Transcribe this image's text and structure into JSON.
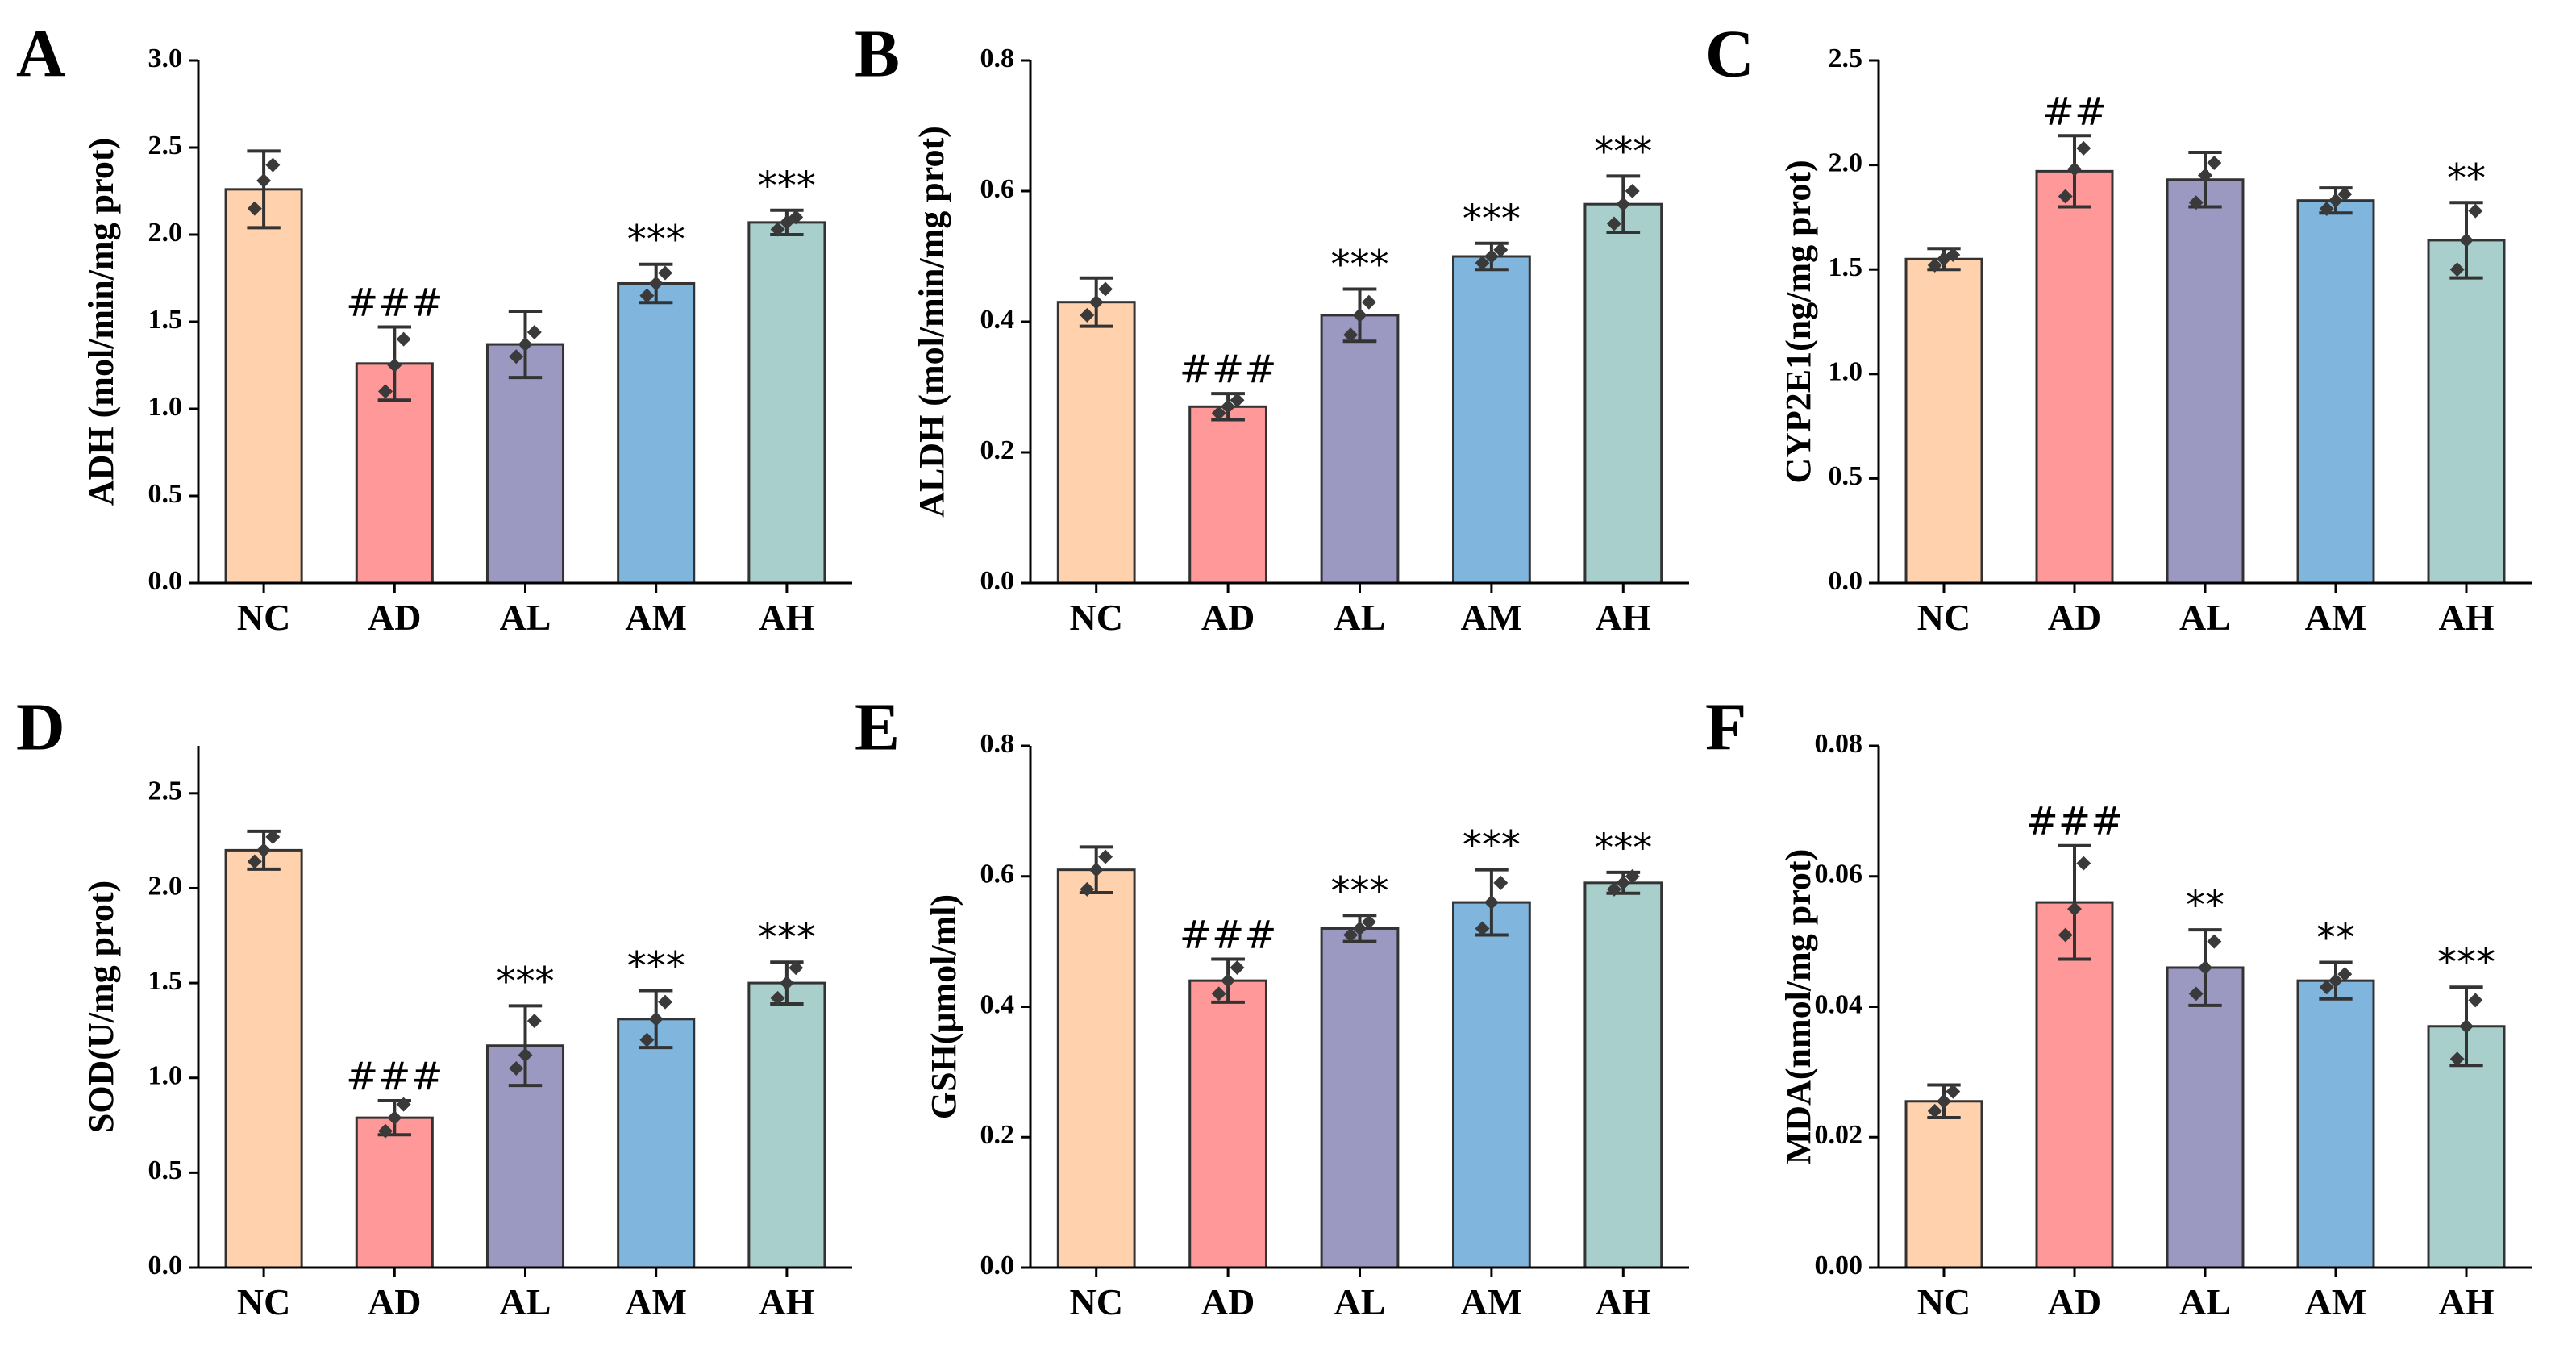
{
  "figure": {
    "colors": {
      "NC": "#ffd2ad",
      "AD": "#ff9999",
      "AL": "#9b99c2",
      "AM": "#80b5de",
      "AH": "#a9cfcc",
      "edge": "#333333"
    }
  },
  "chart_data": [
    {
      "type": "bar",
      "panel": "A",
      "ylabel": "ADH (mol/min/mg prot)",
      "categories": [
        "NC",
        "AD",
        "AL",
        "AM",
        "AH"
      ],
      "values": [
        2.26,
        1.26,
        1.37,
        1.72,
        2.07
      ],
      "errors": [
        0.22,
        0.21,
        0.19,
        0.11,
        0.07
      ],
      "points": [
        [
          2.15,
          2.31,
          2.4
        ],
        [
          1.1,
          1.25,
          1.4
        ],
        [
          1.3,
          1.37,
          1.44
        ],
        [
          1.65,
          1.72,
          1.78
        ],
        [
          2.03,
          2.07,
          2.1
        ]
      ],
      "annotations": [
        "",
        "###",
        "",
        "***",
        "***"
      ],
      "ylim": [
        0,
        3.0
      ],
      "yticks": [
        "0.0",
        "0.5",
        "1.0",
        "1.5",
        "2.0",
        "2.5",
        "3.0"
      ]
    },
    {
      "type": "bar",
      "panel": "B",
      "ylabel": "ALDH (mol/min/mg prot)",
      "categories": [
        "NC",
        "AD",
        "AL",
        "AM",
        "AH"
      ],
      "values": [
        0.43,
        0.27,
        0.41,
        0.5,
        0.58
      ],
      "errors": [
        0.037,
        0.02,
        0.04,
        0.02,
        0.043
      ],
      "points": [
        [
          0.41,
          0.43,
          0.45
        ],
        [
          0.26,
          0.27,
          0.28
        ],
        [
          0.38,
          0.41,
          0.43
        ],
        [
          0.49,
          0.5,
          0.51
        ],
        [
          0.55,
          0.58,
          0.6
        ]
      ],
      "annotations": [
        "",
        "###",
        "***",
        "***",
        "***"
      ],
      "ylim": [
        0,
        0.8
      ],
      "yticks": [
        "0.0",
        "0.2",
        "0.4",
        "0.6",
        "0.8"
      ]
    },
    {
      "type": "bar",
      "panel": "C",
      "ylabel": "CYP2E1(ng/mg prot)",
      "categories": [
        "NC",
        "AD",
        "AL",
        "AM",
        "AH"
      ],
      "values": [
        1.55,
        1.97,
        1.93,
        1.83,
        1.64
      ],
      "errors": [
        0.05,
        0.17,
        0.13,
        0.06,
        0.18
      ],
      "points": [
        [
          1.52,
          1.55,
          1.57
        ],
        [
          1.85,
          1.98,
          2.08
        ],
        [
          1.82,
          1.95,
          2.01
        ],
        [
          1.79,
          1.83,
          1.86
        ],
        [
          1.5,
          1.64,
          1.78
        ]
      ],
      "annotations": [
        "",
        "##",
        "",
        "",
        "**"
      ],
      "ylim": [
        0,
        2.5
      ],
      "yticks": [
        "0.0",
        "0.5",
        "1.0",
        "1.5",
        "2.0",
        "2.5"
      ]
    },
    {
      "type": "bar",
      "panel": "D",
      "ylabel": "SOD(U/mg prot)",
      "categories": [
        "NC",
        "AD",
        "AL",
        "AM",
        "AH"
      ],
      "values": [
        2.2,
        0.79,
        1.17,
        1.31,
        1.5
      ],
      "errors": [
        0.1,
        0.09,
        0.21,
        0.15,
        0.11
      ],
      "points": [
        [
          2.14,
          2.2,
          2.27
        ],
        [
          0.72,
          0.79,
          0.86
        ],
        [
          1.05,
          1.12,
          1.3
        ],
        [
          1.2,
          1.31,
          1.4
        ],
        [
          1.42,
          1.5,
          1.58
        ]
      ],
      "annotations": [
        "",
        "###",
        "***",
        "***",
        "***"
      ],
      "ylim": [
        0,
        2.75
      ],
      "yticks": [
        "0.0",
        "0.5",
        "1.0",
        "1.5",
        "2.0",
        "2.5"
      ]
    },
    {
      "type": "bar",
      "panel": "E",
      "ylabel": "GSH(μmol/ml)",
      "categories": [
        "NC",
        "AD",
        "AL",
        "AM",
        "AH"
      ],
      "values": [
        0.61,
        0.44,
        0.52,
        0.56,
        0.59
      ],
      "errors": [
        0.035,
        0.033,
        0.02,
        0.05,
        0.016
      ],
      "points": [
        [
          0.58,
          0.61,
          0.63
        ],
        [
          0.42,
          0.44,
          0.46
        ],
        [
          0.51,
          0.52,
          0.53
        ],
        [
          0.52,
          0.56,
          0.59
        ],
        [
          0.58,
          0.59,
          0.6
        ]
      ],
      "annotations": [
        "",
        "###",
        "***",
        "***",
        "***"
      ],
      "ylim": [
        0,
        0.8
      ],
      "yticks": [
        "0.0",
        "0.2",
        "0.4",
        "0.6",
        "0.8"
      ]
    },
    {
      "type": "bar",
      "panel": "F",
      "ylabel": "MDA(nmol/mg prot)",
      "categories": [
        "NC",
        "AD",
        "AL",
        "AM",
        "AH"
      ],
      "values": [
        0.0255,
        0.056,
        0.046,
        0.044,
        0.037
      ],
      "errors": [
        0.0025,
        0.0087,
        0.0058,
        0.0028,
        0.006
      ],
      "points": [
        [
          0.024,
          0.0255,
          0.027
        ],
        [
          0.051,
          0.055,
          0.062
        ],
        [
          0.042,
          0.046,
          0.05
        ],
        [
          0.043,
          0.044,
          0.045
        ],
        [
          0.032,
          0.037,
          0.041
        ]
      ],
      "annotations": [
        "",
        "###",
        "**",
        "**",
        "***"
      ],
      "ylim": [
        0,
        0.08
      ],
      "yticks": [
        "0.00",
        "0.02",
        "0.04",
        "0.06",
        "0.08"
      ]
    }
  ]
}
